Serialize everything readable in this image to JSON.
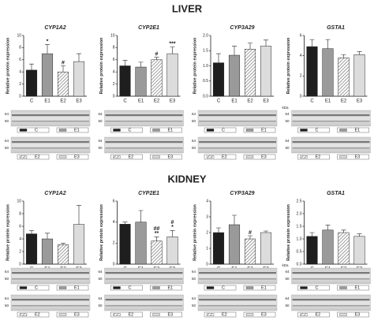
{
  "sections": [
    {
      "title": "LIVER"
    },
    {
      "title": "KIDNEY"
    }
  ],
  "chart_data": [
    {
      "type": "bar",
      "title": "CYP1A2",
      "ylabel": "Relative protein expression",
      "categories": [
        "C",
        "E1",
        "E2",
        "E3"
      ],
      "values": [
        4.3,
        7,
        4,
        5.7
      ],
      "errors": [
        1,
        1.5,
        1,
        1.3
      ],
      "significance": [
        null,
        [
          "*"
        ],
        [
          "#"
        ],
        null
      ],
      "colors": [
        "#1e1e1e",
        "#9a9a9a",
        "hatch",
        "#dcdcdc"
      ],
      "ylim": [
        0,
        10
      ],
      "yticks": [
        0,
        2,
        4,
        6,
        8,
        10
      ],
      "blot_markers": [
        "64",
        "50"
      ]
    },
    {
      "type": "bar",
      "title": "CYP2E1",
      "ylabel": "Relative protein expression",
      "categories": [
        "C",
        "E1",
        "E2",
        "E3"
      ],
      "values": [
        5,
        4.8,
        6,
        7
      ],
      "errors": [
        0.9,
        0.8,
        0.4,
        1.1
      ],
      "significance": [
        null,
        null,
        [
          "#"
        ],
        [
          "***"
        ]
      ],
      "colors": [
        "#1e1e1e",
        "#9a9a9a",
        "hatch",
        "#dcdcdc"
      ],
      "ylim": [
        0,
        10
      ],
      "yticks": [
        0,
        2,
        4,
        6,
        8,
        10
      ],
      "blot_markers": [
        "64",
        "50"
      ]
    },
    {
      "type": "bar",
      "title": "CYP3A29",
      "ylabel": "Relative protein expression",
      "categories": [
        "C",
        "E1",
        "E2",
        "E3"
      ],
      "values": [
        1.1,
        1.35,
        1.55,
        1.65
      ],
      "errors": [
        0.3,
        0.3,
        0.2,
        0.2
      ],
      "significance": [
        null,
        null,
        null,
        null
      ],
      "colors": [
        "#1e1e1e",
        "#9a9a9a",
        "hatch",
        "#dcdcdc"
      ],
      "ylim": [
        0,
        2
      ],
      "yticks": [
        {
          "value": 0,
          "label": "0.0"
        },
        0.5,
        {
          "value": 1,
          "label": "1.0"
        },
        1.5,
        {
          "value": 2,
          "label": "2.0"
        }
      ],
      "blot_markers": [
        "64",
        "50"
      ]
    },
    {
      "type": "bar",
      "title": "GSTA1",
      "ylabel": "Relative protein expression",
      "categories": [
        "C",
        "E1",
        "E2",
        "E3"
      ],
      "values": [
        4.9,
        4.7,
        3.8,
        4.1
      ],
      "errors": [
        0.7,
        0.9,
        0.3,
        0.3
      ],
      "significance": [
        null,
        null,
        null,
        null
      ],
      "colors": [
        "#1e1e1e",
        "#9a9a9a",
        "hatch",
        "#dcdcdc"
      ],
      "ylim": [
        0,
        6
      ],
      "yticks": [
        0,
        2,
        4,
        6
      ],
      "blot_unit": "kDa",
      "blot_markers": [
        "64",
        "50"
      ]
    },
    {
      "type": "bar",
      "title": "CYP1A2",
      "ylabel": "Relative protein expression",
      "categories": [
        "C",
        "E1",
        "E2",
        "E3"
      ],
      "values": [
        4.8,
        4,
        3.1,
        6.3
      ],
      "errors": [
        0.5,
        0.9,
        0.2,
        3
      ],
      "significance": [
        null,
        null,
        null,
        null
      ],
      "colors": [
        "#1e1e1e",
        "#9a9a9a",
        "hatch",
        "#dcdcdc"
      ],
      "ylim": [
        0,
        10
      ],
      "yticks": [
        0,
        2,
        4,
        6,
        8,
        10
      ],
      "blot_markers": [
        "64",
        "50"
      ]
    },
    {
      "type": "bar",
      "title": "CYP2E1",
      "ylabel": "Relative protein expression",
      "categories": [
        "C",
        "E1",
        "E2",
        "E3"
      ],
      "values": [
        3.8,
        4,
        2.2,
        2.6
      ],
      "errors": [
        0.2,
        1.1,
        0.4,
        0.6
      ],
      "significance": [
        null,
        null,
        [
          "##",
          "**"
        ],
        [
          "#",
          "*"
        ]
      ],
      "colors": [
        "#1e1e1e",
        "#9a9a9a",
        "hatch",
        "#dcdcdc"
      ],
      "ylim": [
        0,
        6
      ],
      "yticks": [
        0,
        2,
        4,
        6
      ],
      "blot_markers": [
        "64",
        "50"
      ]
    },
    {
      "type": "bar",
      "title": "CYP3A29",
      "ylabel": "Relative protein expression",
      "categories": [
        "C",
        "E1",
        "E2",
        "E3"
      ],
      "values": [
        2,
        2.5,
        1.6,
        2
      ],
      "errors": [
        0.3,
        0.6,
        0.2,
        0.1
      ],
      "significance": [
        null,
        null,
        [
          "#"
        ],
        null
      ],
      "colors": [
        "#1e1e1e",
        "#9a9a9a",
        "hatch",
        "#dcdcdc"
      ],
      "ylim": [
        0,
        4
      ],
      "yticks": [
        0,
        1,
        2,
        3,
        4
      ],
      "blot_markers": [
        "64",
        "50"
      ]
    },
    {
      "type": "bar",
      "title": "GSTA1",
      "ylabel": "Relative protein expression",
      "categories": [
        "C",
        "E1",
        "E2",
        "E3"
      ],
      "values": [
        1.1,
        1.35,
        1.25,
        1.1
      ],
      "errors": [
        0.15,
        0.2,
        0.1,
        0.1
      ],
      "significance": [
        null,
        null,
        null,
        null
      ],
      "colors": [
        "#1e1e1e",
        "#9a9a9a",
        "hatch",
        "#dcdcdc"
      ],
      "ylim": [
        0,
        2.5
      ],
      "yticks": [
        {
          "value": 0,
          "label": "0.0"
        },
        0.5,
        {
          "value": 1,
          "label": "1.0"
        },
        1.5,
        {
          "value": 2,
          "label": "2.0"
        },
        2.5
      ],
      "blot_unit": "kDa",
      "blot_markers": [
        "64",
        "50"
      ]
    }
  ]
}
